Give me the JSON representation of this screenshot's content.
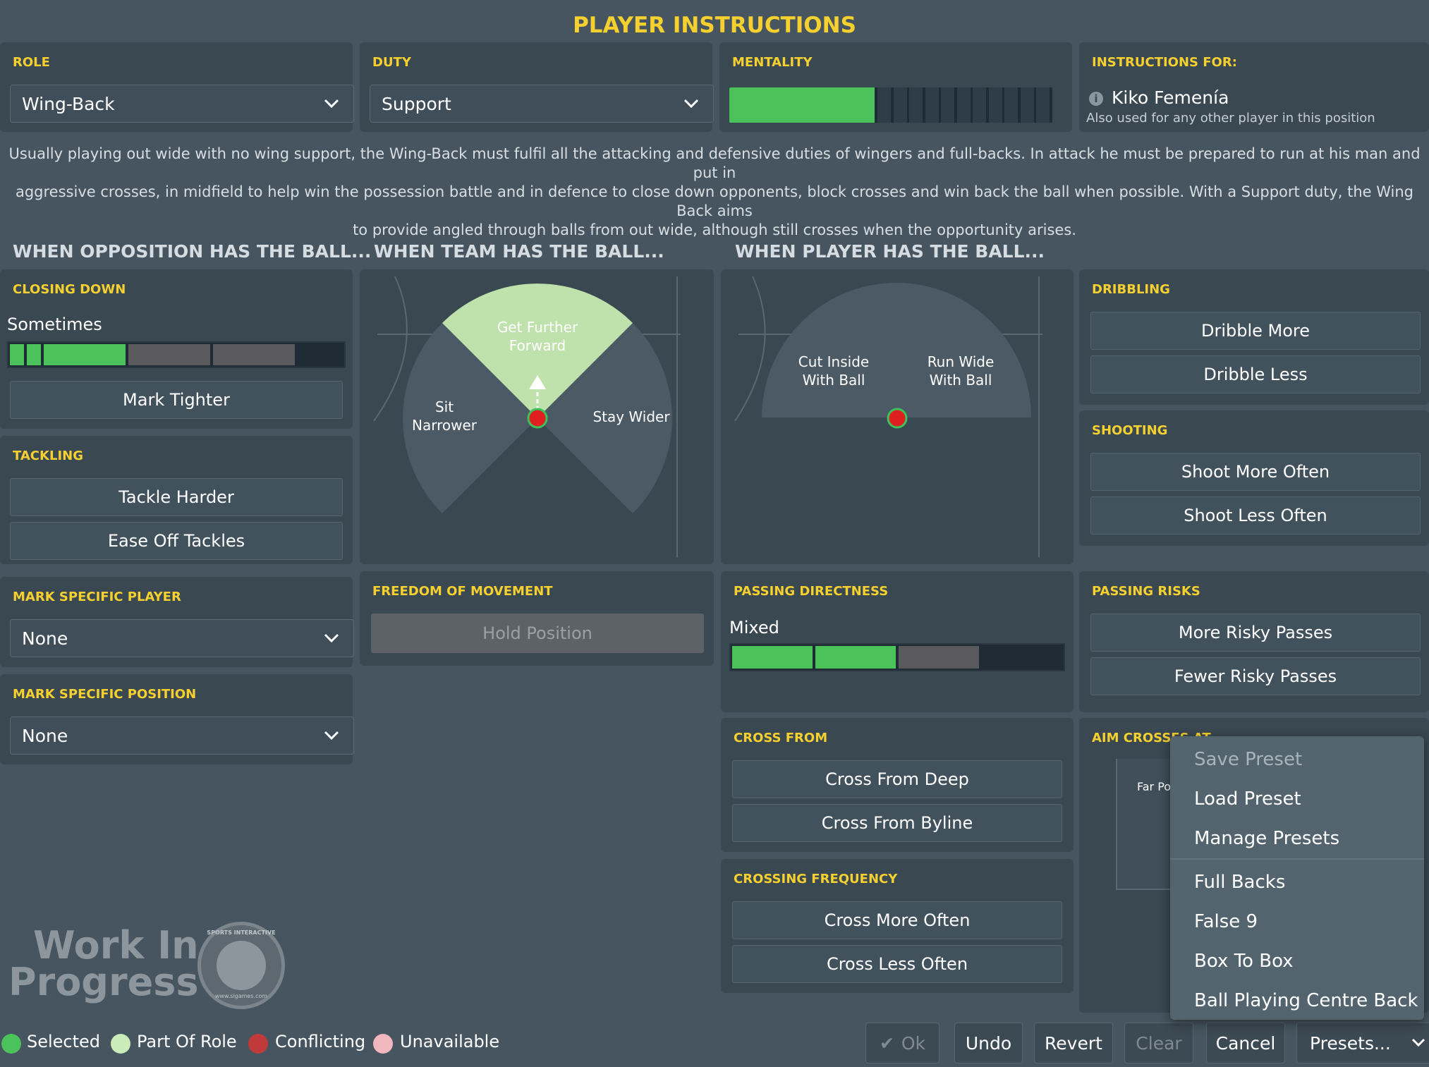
{
  "page_title": "PLAYER INSTRUCTIONS",
  "role": {
    "header": "ROLE",
    "value": "Wing-Back"
  },
  "duty": {
    "header": "DUTY",
    "value": "Support"
  },
  "mentality": {
    "header": "MENTALITY",
    "level": 0.45
  },
  "instructions_for": {
    "header": "INSTRUCTIONS FOR:",
    "player": "Kiko Femenía",
    "note": "Also used for any other player in this position"
  },
  "description": [
    "Usually playing out wide with no wing support, the Wing-Back must fulfil all the attacking and defensive duties of wingers and full-backs. In attack he must be prepared to run at his man and put in",
    "aggressive crosses, in midfield to help win the possession battle and in defence to close down opponents, block crosses and win back the ball when possible. With a Support duty, the Wing Back aims",
    "to provide angled through balls from out wide, although still crosses when the opportunity arises."
  ],
  "sections": {
    "opposition": "WHEN OPPOSITION HAS THE BALL...",
    "team": "WHEN TEAM HAS THE BALL...",
    "player": "WHEN PLAYER HAS THE BALL..."
  },
  "closing_down": {
    "header": "CLOSING DOWN",
    "value": "Sometimes",
    "button": "Mark Tighter"
  },
  "tackling": {
    "header": "TACKLING",
    "buttons": [
      "Tackle Harder",
      "Ease Off Tackles"
    ]
  },
  "mark_player": {
    "header": "MARK SPECIFIC PLAYER",
    "value": "None"
  },
  "mark_position": {
    "header": "MARK SPECIFIC POSITION",
    "value": "None"
  },
  "team_diagram": {
    "forward": "Get Further Forward",
    "narrower": "Sit Narrower",
    "wider": "Stay Wider"
  },
  "player_diagram": {
    "inside": "Cut Inside With Ball",
    "wide": "Run Wide With Ball"
  },
  "freedom": {
    "header": "FREEDOM OF MOVEMENT",
    "button": "Hold Position"
  },
  "passing_directness": {
    "header": "PASSING DIRECTNESS",
    "value": "Mixed"
  },
  "dribbling": {
    "header": "DRIBBLING",
    "buttons": [
      "Dribble More",
      "Dribble Less"
    ]
  },
  "shooting": {
    "header": "SHOOTING",
    "buttons": [
      "Shoot More Often",
      "Shoot Less Often"
    ]
  },
  "passing_risks": {
    "header": "PASSING RISKS",
    "buttons": [
      "More Risky Passes",
      "Fewer Risky Passes"
    ]
  },
  "cross_from": {
    "header": "CROSS FROM",
    "buttons": [
      "Cross From Deep",
      "Cross From Byline"
    ]
  },
  "crossing_frequency": {
    "header": "CROSSING FREQUENCY",
    "buttons": [
      "Cross More Often",
      "Cross Less Often"
    ]
  },
  "aim_crosses": {
    "header": "AIM CROSSES AT",
    "far_label": "Far Po"
  },
  "presets_menu": {
    "items": [
      "Save Preset",
      "Load Preset",
      "Manage Presets",
      "Full Backs",
      "False 9",
      "Box To Box",
      "Ball Playing Centre Back"
    ]
  },
  "watermark": {
    "line1": "Work In",
    "line2": "Progress",
    "logo": "SPORTS INTERACTIVE",
    "url": "www.sigames.com"
  },
  "legend": [
    "Selected",
    "Part Of Role",
    "Conflicting",
    "Unavailable"
  ],
  "bottom_buttons": {
    "ok": "Ok",
    "undo": "Undo",
    "revert": "Revert",
    "clear": "Clear",
    "cancel": "Cancel",
    "presets": "Presets..."
  },
  "colors": {
    "accent": "#f5d02f",
    "selected": "#4cc25a",
    "part_of_role": "#c9ecb8",
    "conflicting": "#c0393b",
    "unavailable": "#f2b7bd"
  }
}
